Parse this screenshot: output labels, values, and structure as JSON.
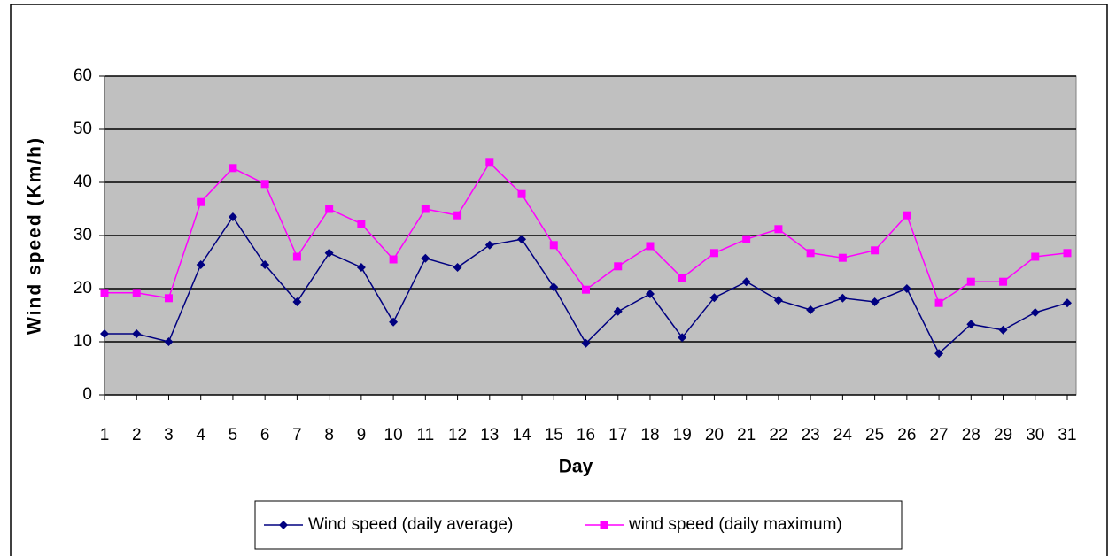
{
  "chart_data": {
    "type": "line",
    "x_label": "Day",
    "y_label": "Wind speed (Km/h)",
    "categories": [
      1,
      2,
      3,
      4,
      5,
      6,
      7,
      8,
      9,
      10,
      11,
      12,
      13,
      14,
      15,
      16,
      17,
      18,
      19,
      20,
      21,
      22,
      23,
      24,
      25,
      26,
      27,
      28,
      29,
      30,
      31
    ],
    "series": [
      {
        "name": "Wind speed (daily average)",
        "color": "#000080",
        "marker": "diamond",
        "values": [
          11.5,
          11.5,
          10,
          24.5,
          33.5,
          24.5,
          17.5,
          26.7,
          24,
          13.7,
          25.7,
          24,
          28.2,
          29.3,
          20.3,
          9.7,
          15.7,
          19,
          10.8,
          18.3,
          21.3,
          17.8,
          16,
          18.2,
          17.5,
          20,
          7.8,
          13.3,
          12.2,
          15.5,
          17.3
        ]
      },
      {
        "name": "wind speed (daily maximum)",
        "color": "#ff00ff",
        "marker": "square",
        "values": [
          19.2,
          19.2,
          18.2,
          36.3,
          42.7,
          39.7,
          26,
          35,
          32.2,
          25.5,
          35,
          33.8,
          43.7,
          37.8,
          28.2,
          19.8,
          24.2,
          28,
          22,
          26.7,
          29.3,
          31.2,
          26.7,
          25.8,
          27.2,
          33.8,
          17.3,
          21.3,
          21.3,
          26,
          26.7
        ]
      }
    ],
    "ylim": [
      0,
      60
    ],
    "yticks": [
      0,
      10,
      20,
      30,
      40,
      50,
      60
    ],
    "grid": true,
    "legend": "bottom"
  }
}
